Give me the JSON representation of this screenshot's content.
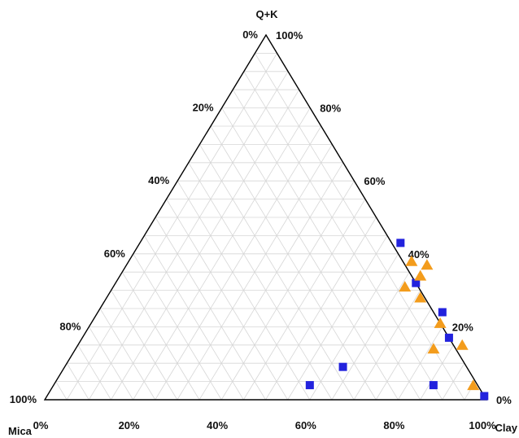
{
  "chart_data": {
    "type": "scatter",
    "subtype": "ternary",
    "vertices": {
      "top": "Q+K",
      "left": "Mica",
      "right": "Clay"
    },
    "ticks": {
      "left_edge": [
        "100%",
        "80%",
        "60%",
        "40%",
        "20%",
        "0%"
      ],
      "right_edge": [
        "100%",
        "80%",
        "60%",
        "40%",
        "20%",
        "0%"
      ],
      "bottom_edge": [
        "0%",
        "20%",
        "40%",
        "60%",
        "80%",
        "100%"
      ]
    },
    "grid": true,
    "grid_step_percent": 5,
    "series": [
      {
        "marker": "square",
        "color": "#2222dd",
        "points": [
          {
            "qk": 43,
            "clay": 59
          },
          {
            "qk": 32,
            "clay": 68
          },
          {
            "qk": 24,
            "clay": 78
          },
          {
            "qk": 17,
            "clay": 83
          },
          {
            "qk": 9,
            "clay": 63
          },
          {
            "qk": 4,
            "clay": 58
          },
          {
            "qk": 4,
            "clay": 86
          },
          {
            "qk": 1,
            "clay": 99
          }
        ]
      },
      {
        "marker": "triangle",
        "color": "#f39c1c",
        "points": [
          {
            "qk": 38,
            "clay": 64
          },
          {
            "qk": 37,
            "clay": 68
          },
          {
            "qk": 34,
            "clay": 68
          },
          {
            "qk": 31,
            "clay": 66
          },
          {
            "qk": 28,
            "clay": 71
          },
          {
            "qk": 21,
            "clay": 79
          },
          {
            "qk": 15,
            "clay": 87
          },
          {
            "qk": 14,
            "clay": 81
          },
          {
            "qk": 4,
            "clay": 95
          }
        ]
      }
    ]
  }
}
